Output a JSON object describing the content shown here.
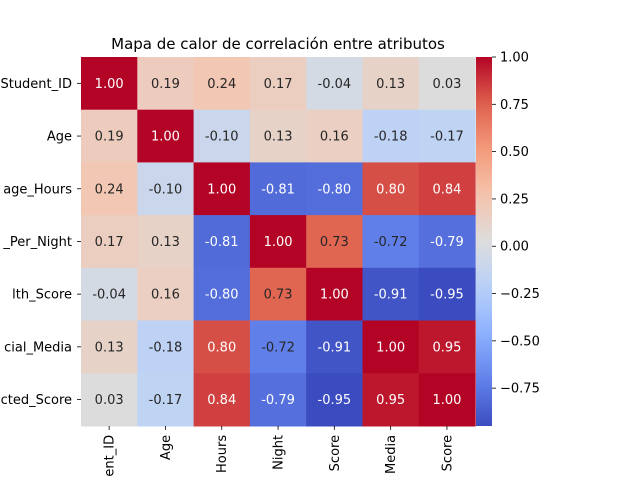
{
  "chart_data": {
    "type": "heatmap",
    "title": "Mapa de calor de correlación entre atributos",
    "row_labels": [
      "Student_ID",
      "Age",
      "age_Hours",
      "_Per_Night",
      "lth_Score",
      "cial_Media",
      "cted_Score"
    ],
    "col_labels": [
      "ent_ID",
      "Age",
      "Hours",
      "Night",
      "Score",
      "Media",
      "Score"
    ],
    "values": [
      [
        1.0,
        0.19,
        0.24,
        0.17,
        -0.04,
        0.13,
        0.03
      ],
      [
        0.19,
        1.0,
        -0.1,
        0.13,
        0.16,
        -0.18,
        -0.17
      ],
      [
        0.24,
        -0.1,
        1.0,
        -0.81,
        -0.8,
        0.8,
        0.84
      ],
      [
        0.17,
        0.13,
        -0.81,
        1.0,
        0.73,
        -0.72,
        -0.79
      ],
      [
        -0.04,
        0.16,
        -0.8,
        0.73,
        1.0,
        -0.91,
        -0.95
      ],
      [
        0.13,
        -0.18,
        0.8,
        -0.72,
        -0.91,
        1.0,
        0.95
      ],
      [
        0.03,
        -0.17,
        0.84,
        -0.79,
        -0.95,
        0.95,
        1.0
      ]
    ],
    "colormap": "coolwarm",
    "vmin": -0.95,
    "vmax": 1.0,
    "colorbar_ticks": [
      1.0,
      0.75,
      0.5,
      0.25,
      0.0,
      -0.25,
      -0.5,
      -0.75
    ],
    "annotation_format": "0.00",
    "grid": false,
    "legend": "colorbar-right"
  }
}
